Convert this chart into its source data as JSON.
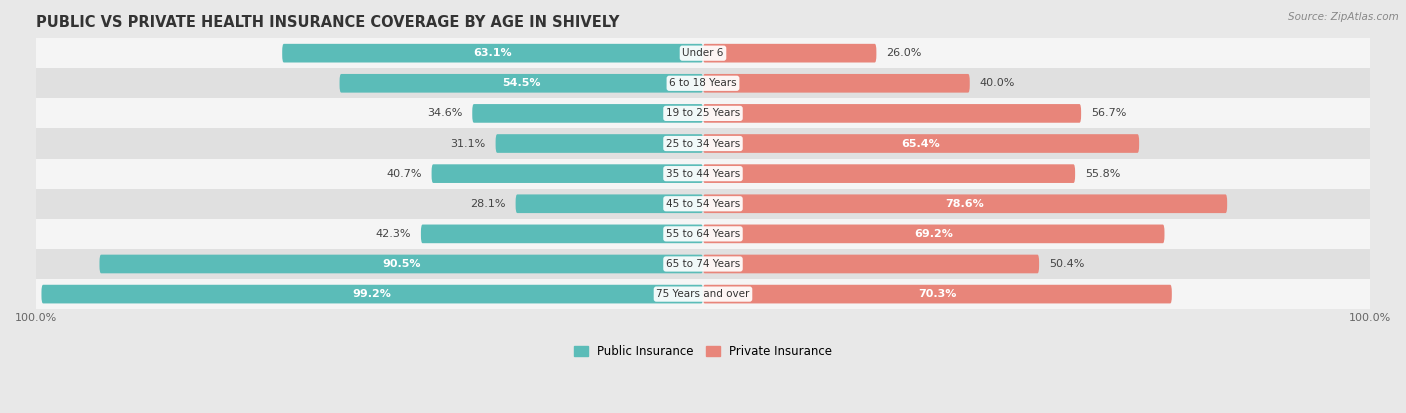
{
  "title": "PUBLIC VS PRIVATE HEALTH INSURANCE COVERAGE BY AGE IN SHIVELY",
  "source": "Source: ZipAtlas.com",
  "categories": [
    "Under 6",
    "6 to 18 Years",
    "19 to 25 Years",
    "25 to 34 Years",
    "35 to 44 Years",
    "45 to 54 Years",
    "55 to 64 Years",
    "65 to 74 Years",
    "75 Years and over"
  ],
  "public_values": [
    63.1,
    54.5,
    34.6,
    31.1,
    40.7,
    28.1,
    42.3,
    90.5,
    99.2
  ],
  "private_values": [
    26.0,
    40.0,
    56.7,
    65.4,
    55.8,
    78.6,
    69.2,
    50.4,
    70.3
  ],
  "public_color": "#5bbcb8",
  "private_color": "#e8857a",
  "background_color": "#e8e8e8",
  "row_bg_light": "#f5f5f5",
  "row_bg_dark": "#e0e0e0",
  "title_fontsize": 10.5,
  "label_fontsize": 8.0,
  "cat_fontsize": 7.5,
  "bar_height": 0.62,
  "max_value": 100.0,
  "legend_labels": [
    "Public Insurance",
    "Private Insurance"
  ]
}
